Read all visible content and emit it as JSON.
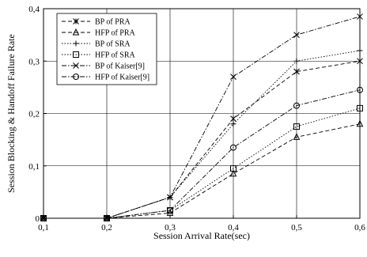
{
  "chart_data": {
    "type": "line",
    "xlabel": "Session Arrival Rate(sec)",
    "ylabel": "Session Blocking & Handoff Failure Rate",
    "xlim": [
      0.1,
      0.6
    ],
    "ylim": [
      0,
      0.4
    ],
    "x_ticks": [
      "0,1",
      "0,2",
      "0,3",
      "0,4",
      "0,5",
      "0,6"
    ],
    "y_ticks": [
      "0",
      "0,1",
      "0,2",
      "0,3",
      "0,4"
    ],
    "x": [
      0.1,
      0.2,
      0.3,
      0.4,
      0.5,
      0.6
    ],
    "grid": true,
    "legend_position": "top-left",
    "series": [
      {
        "name": "BP of PRA",
        "marker": "asterisk",
        "dash": "dashed",
        "values": [
          0,
          0,
          0.04,
          0.19,
          0.28,
          0.3
        ]
      },
      {
        "name": "HFP of PRA",
        "marker": "triangle",
        "dash": "dashed",
        "values": [
          0,
          0,
          0.01,
          0.085,
          0.155,
          0.18
        ]
      },
      {
        "name": "BP of SRA",
        "marker": "plus",
        "dash": "dotted",
        "values": [
          0,
          0,
          0.04,
          0.18,
          0.3,
          0.32
        ]
      },
      {
        "name": "HFP of SRA",
        "marker": "square",
        "dash": "dotted",
        "values": [
          0,
          0,
          0.015,
          0.095,
          0.175,
          0.21
        ]
      },
      {
        "name": "BP of Kaiser[9]",
        "marker": "x",
        "dash": "dashdot",
        "values": [
          0,
          0,
          0.04,
          0.27,
          0.35,
          0.385
        ]
      },
      {
        "name": "HFP of Kaiser[9]",
        "marker": "circle",
        "dash": "dashdot",
        "values": [
          0,
          0,
          0.015,
          0.135,
          0.215,
          0.245
        ]
      }
    ]
  }
}
